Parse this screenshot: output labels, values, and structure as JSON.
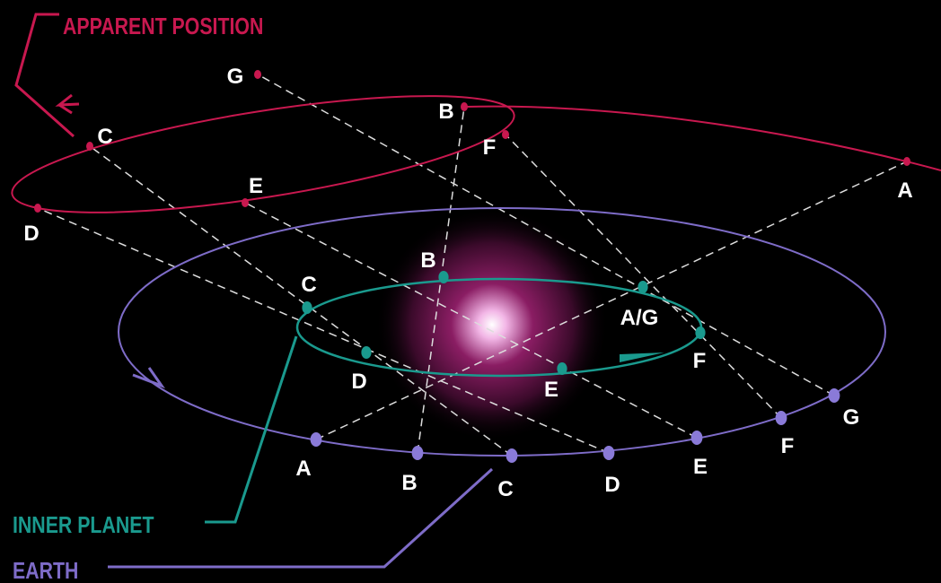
{
  "legend": {
    "apparent": "APPARENT POSITION",
    "inner": "INNER PLANET",
    "earth": "EARTH"
  },
  "apparent_points": [
    "G",
    "B",
    "F",
    "C",
    "E",
    "D",
    "A"
  ],
  "inner_points": [
    "B",
    "C",
    "A/G",
    "D",
    "E",
    "F"
  ],
  "earth_points": [
    "A",
    "B",
    "C",
    "D",
    "E",
    "F",
    "G"
  ]
}
